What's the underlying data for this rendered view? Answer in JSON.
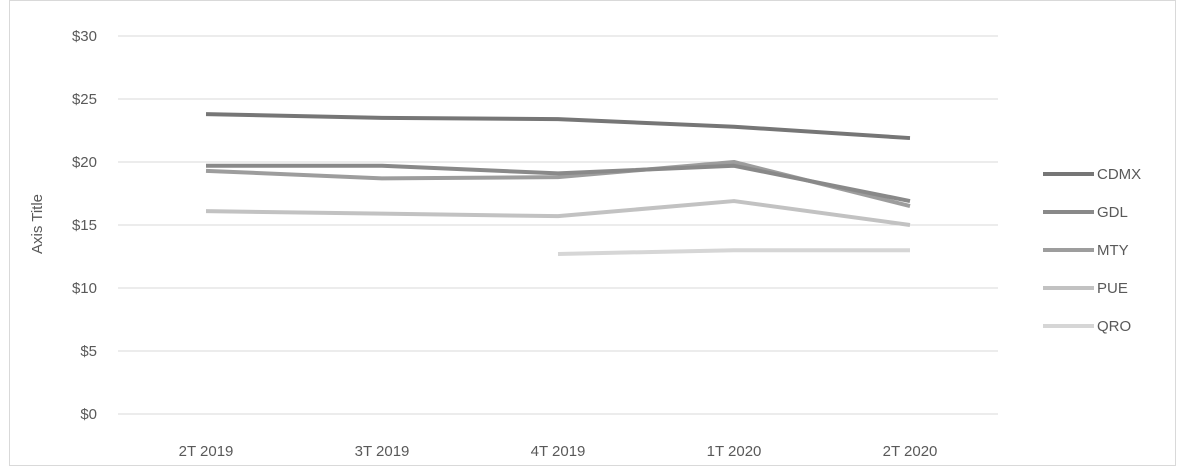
{
  "chart_data": {
    "type": "line",
    "categories": [
      "2T 2019",
      "3T 2019",
      "4T 2019",
      "1T 2020",
      "2T 2020"
    ],
    "ylabel": "Axis Title",
    "ylim": [
      0,
      30
    ],
    "yticks": [
      0,
      5,
      10,
      15,
      20,
      25,
      30
    ],
    "ytick_labels": [
      "$0",
      "$5",
      "$10",
      "$15",
      "$20",
      "$25",
      "$30"
    ],
    "grid": true,
    "legend_position": "right",
    "series": [
      {
        "name": "CDMX",
        "color": "#767676",
        "values": [
          23.8,
          23.5,
          23.4,
          22.8,
          21.9
        ]
      },
      {
        "name": "GDL",
        "color": "#898989",
        "values": [
          19.7,
          19.7,
          19.1,
          19.7,
          16.9
        ]
      },
      {
        "name": "MTY",
        "color": "#9d9d9d",
        "values": [
          19.3,
          18.7,
          18.8,
          20.0,
          16.5
        ]
      },
      {
        "name": "PUE",
        "color": "#c2c2c2",
        "values": [
          16.1,
          15.9,
          15.7,
          16.9,
          15.0
        ]
      },
      {
        "name": "QRO",
        "color": "#d6d6d6",
        "values": [
          null,
          null,
          12.7,
          13.0,
          13.0
        ]
      }
    ]
  }
}
